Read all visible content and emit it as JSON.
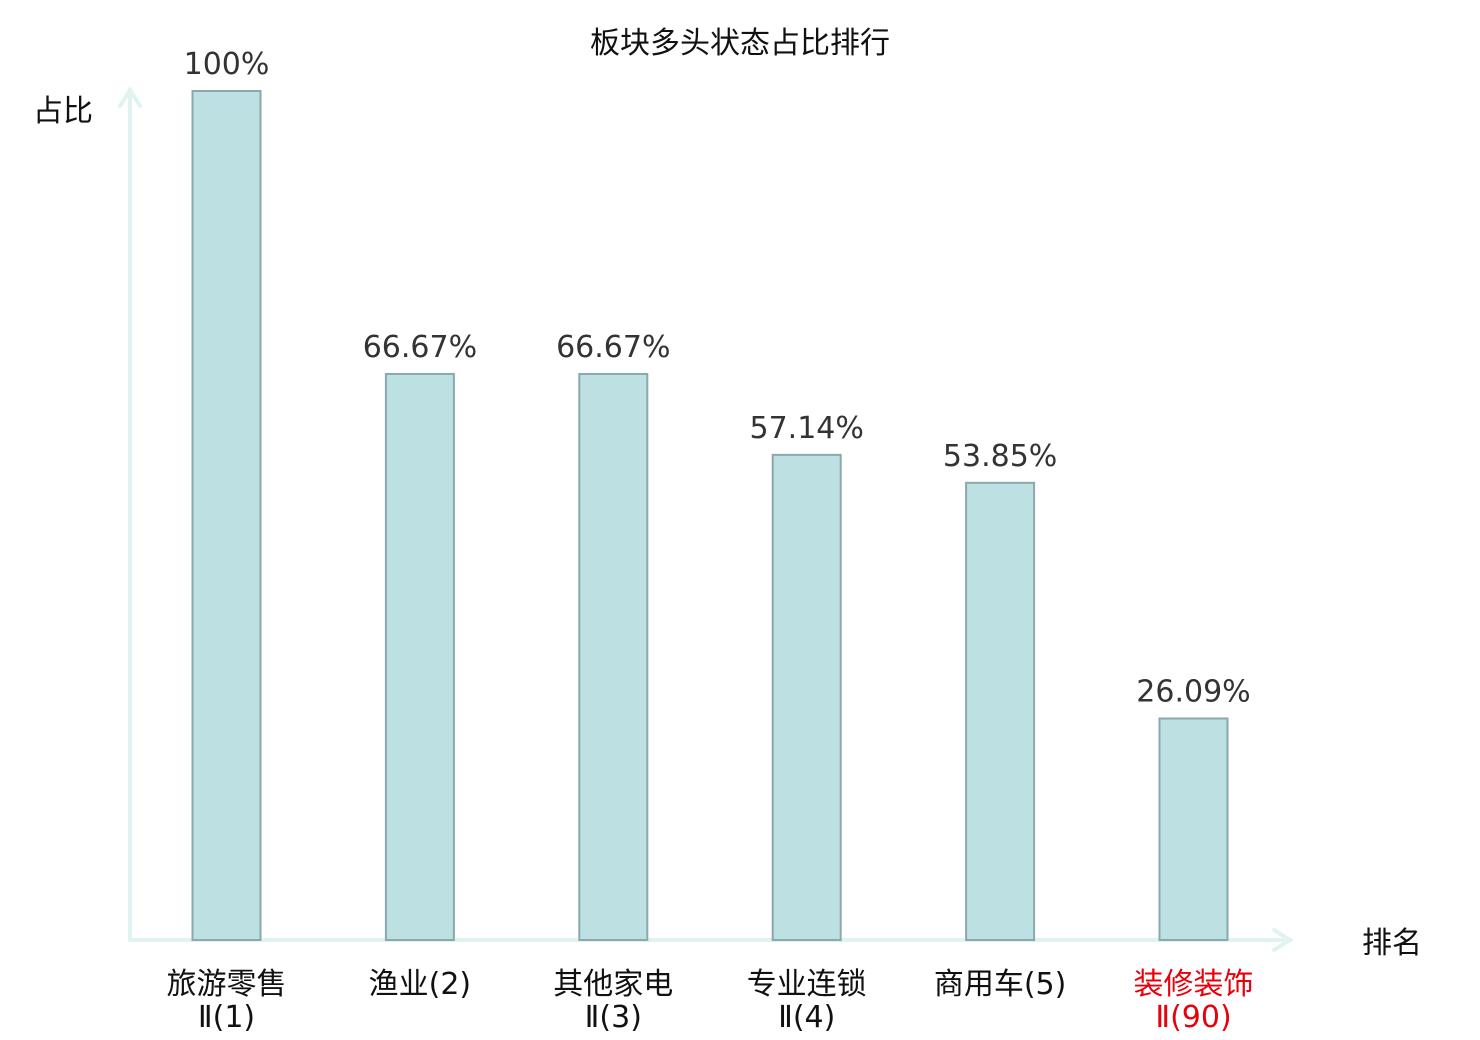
{
  "chart_data": {
    "type": "bar",
    "title": "板块多头状态占比排行",
    "xlabel": "排名",
    "ylabel": "占比",
    "ylim": [
      0,
      100
    ],
    "grid": false,
    "legend": "none",
    "categories": [
      {
        "lines": [
          "旅游零售",
          "Ⅱ(1)"
        ],
        "highlight": false
      },
      {
        "lines": [
          "渔业(2)"
        ],
        "highlight": false
      },
      {
        "lines": [
          "其他家电",
          "Ⅱ(3)"
        ],
        "highlight": false
      },
      {
        "lines": [
          "专业连锁",
          "Ⅱ(4)"
        ],
        "highlight": false
      },
      {
        "lines": [
          "商用车(5)"
        ],
        "highlight": false
      },
      {
        "lines": [
          "装修装饰",
          "Ⅱ(90)"
        ],
        "highlight": true
      }
    ],
    "values": [
      100,
      66.67,
      66.67,
      57.14,
      53.85,
      26.09
    ],
    "value_labels": [
      "100%",
      "66.67%",
      "66.67%",
      "57.14%",
      "53.85%",
      "26.09%"
    ],
    "colors": {
      "bar_fill": "#bde0e3",
      "bar_stroke": "#8aa9ad",
      "axis": "#e0f3f0",
      "text": "#111111",
      "value_text": "#333333",
      "highlight_text": "#e8000b"
    }
  }
}
